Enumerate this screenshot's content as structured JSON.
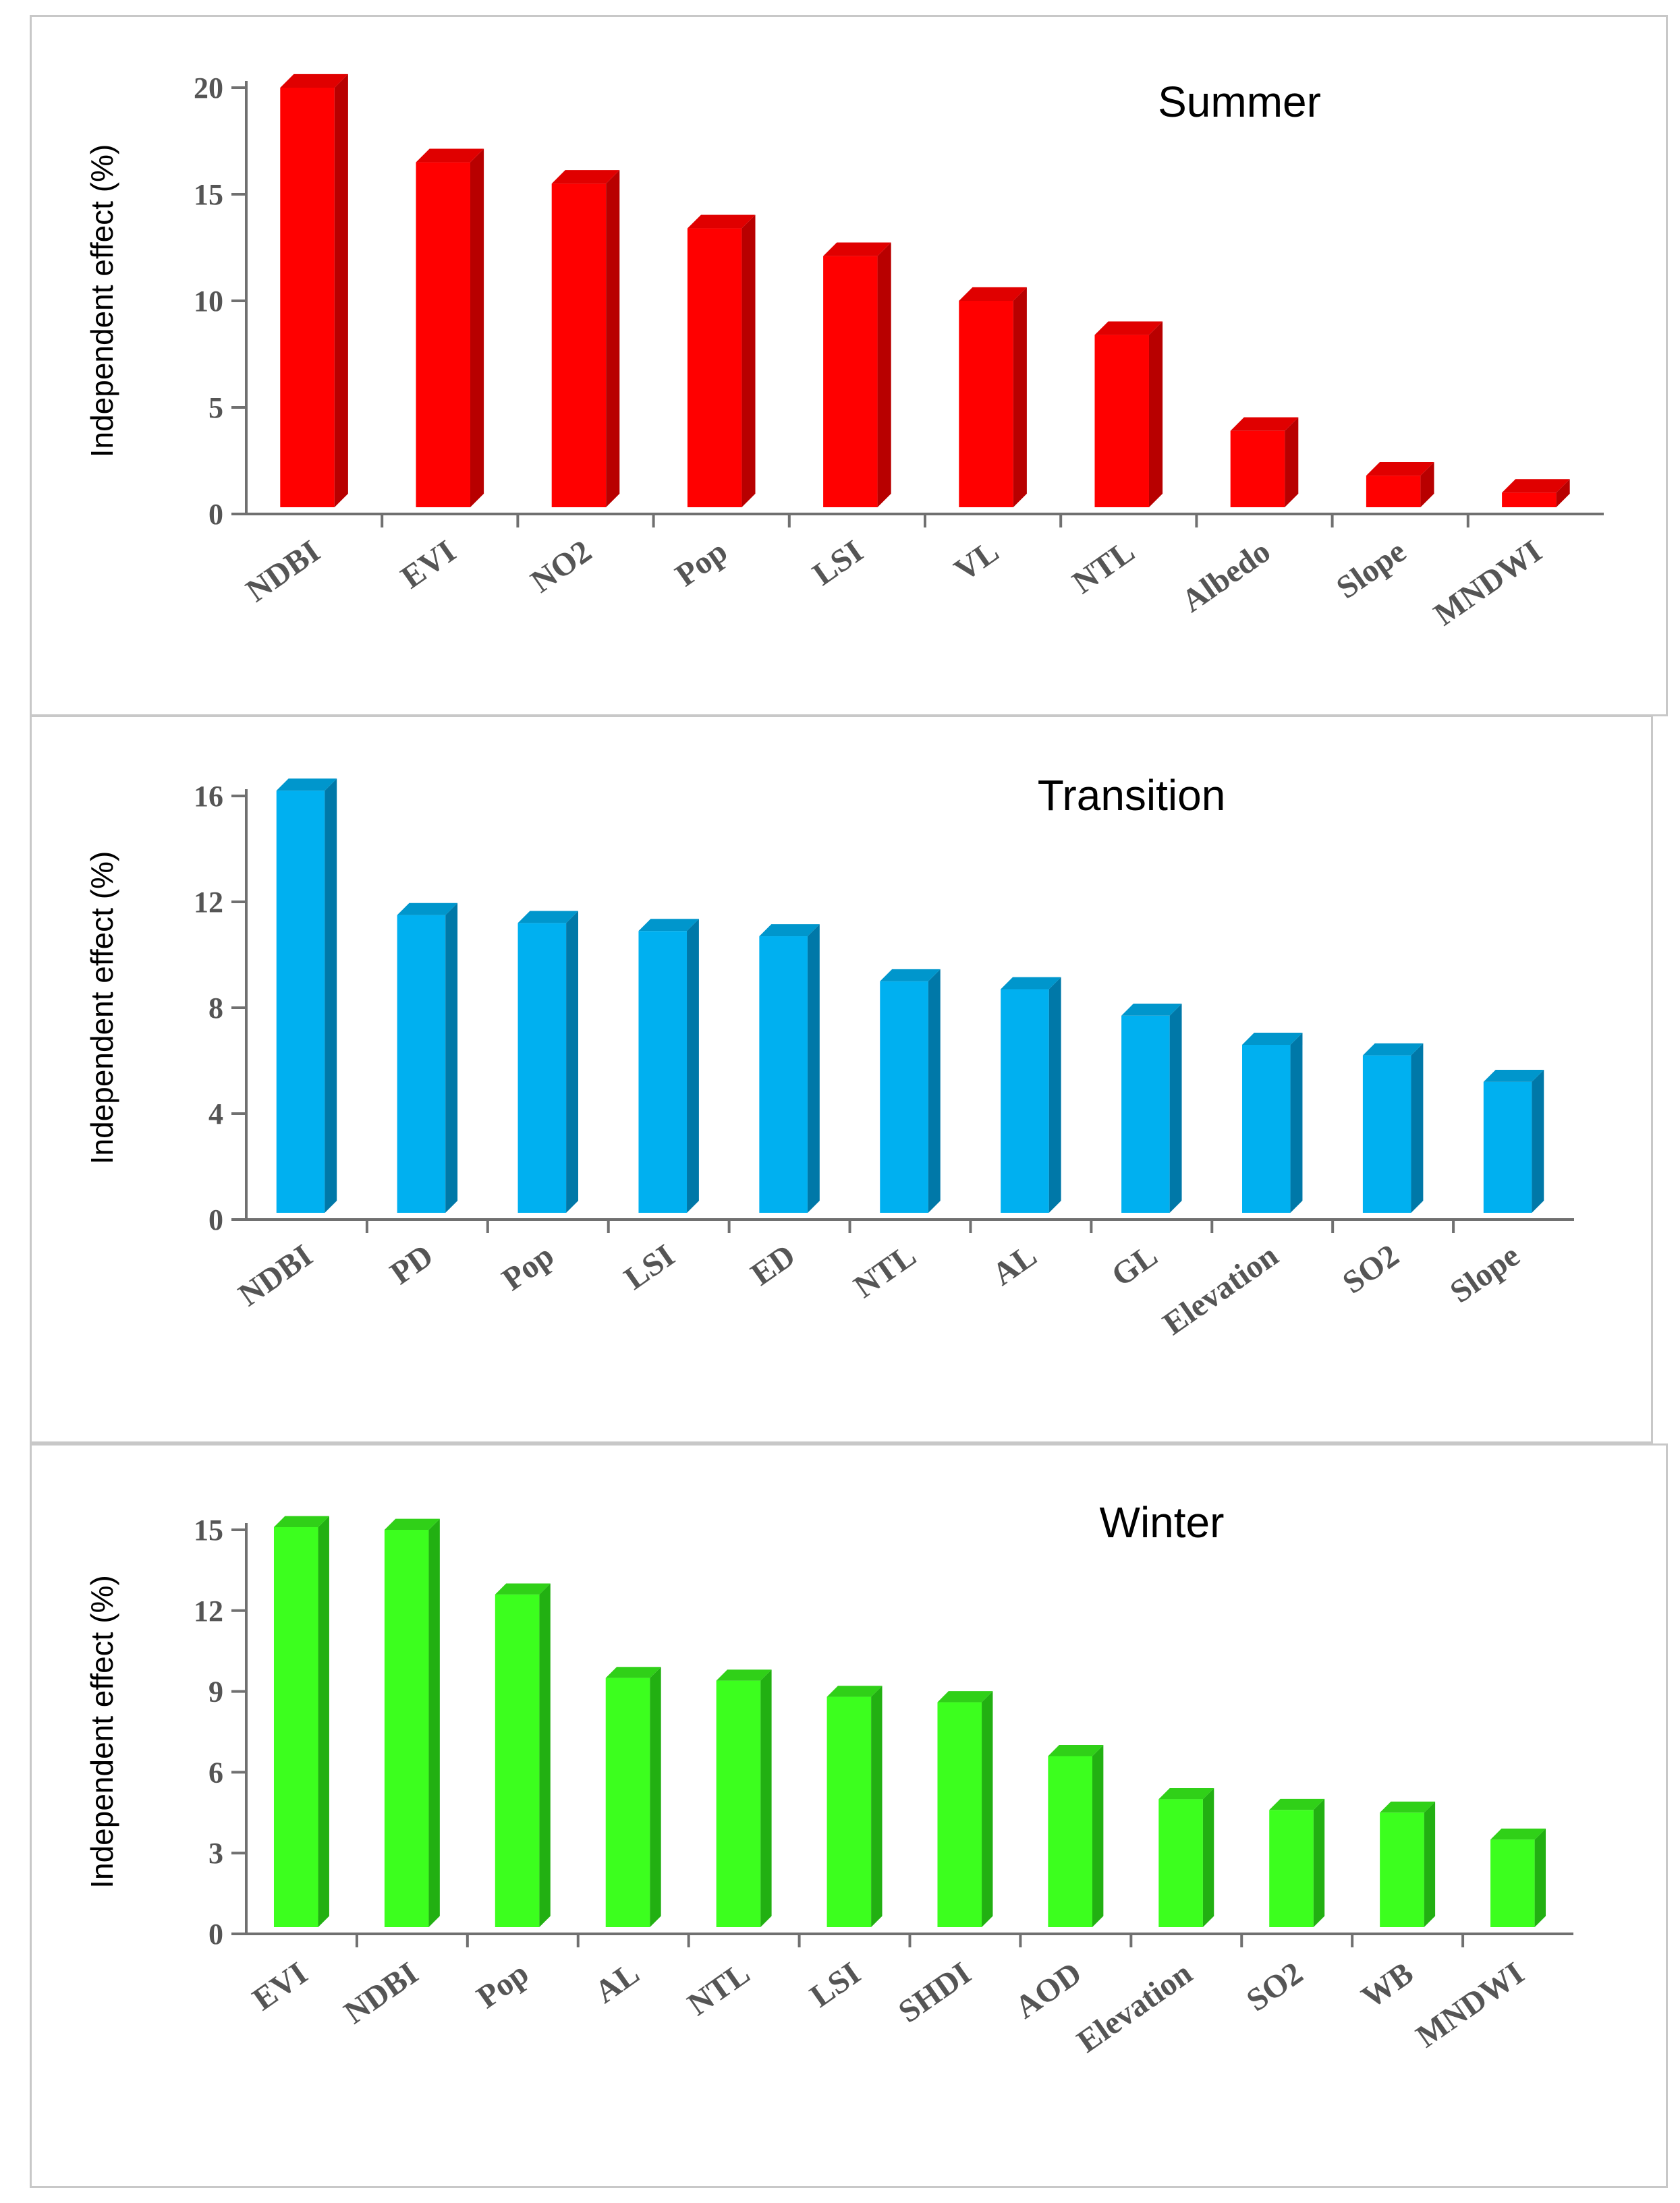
{
  "chart_data": [
    {
      "type": "bar",
      "title": "Summer",
      "xlabel": "",
      "ylabel": "Independent effect (%)",
      "ylim": [
        0,
        20
      ],
      "yticks": [
        "0",
        "5",
        "10",
        "15",
        "20"
      ],
      "categories": [
        "NDBI",
        "EVI",
        "NO2",
        "Pop",
        "LSI",
        "VL",
        "NTL",
        "Albedo",
        "Slope",
        "MNDWI"
      ],
      "values": [
        20.0,
        16.5,
        15.5,
        13.4,
        12.1,
        10.0,
        8.4,
        3.9,
        1.8,
        1.0
      ],
      "colors": {
        "front": "#ff0000",
        "side": "#b80000",
        "top": "#e00000"
      }
    },
    {
      "type": "bar",
      "title": "Transition",
      "xlabel": "",
      "ylabel": "Independent effect (%)",
      "ylim": [
        0,
        16
      ],
      "yticks": [
        "0",
        "4",
        "8",
        "12",
        "16"
      ],
      "categories": [
        "NDBI",
        "PD",
        "Pop",
        "LSI",
        "ED",
        "NTL",
        "AL",
        "GL",
        "Elevation",
        "SO2",
        "Slope"
      ],
      "values": [
        16.2,
        11.5,
        11.2,
        10.9,
        10.7,
        9.0,
        8.7,
        7.7,
        6.6,
        6.2,
        5.2
      ],
      "colors": {
        "front": "#00b0f0",
        "side": "#0078a8",
        "top": "#0096cc"
      }
    },
    {
      "type": "bar",
      "title": "Winter",
      "xlabel": "",
      "ylabel": "Independent effect (%)",
      "ylim": [
        0,
        15
      ],
      "yticks": [
        "0",
        "3",
        "6",
        "9",
        "12",
        "15"
      ],
      "categories": [
        "EVI",
        "NDBI",
        "Pop",
        "AL",
        "NTL",
        "LSI",
        "SHDI",
        "AOD",
        "Elevation",
        "SO2",
        "WB",
        "MNDWI"
      ],
      "values": [
        15.1,
        15.0,
        12.6,
        9.5,
        9.4,
        8.8,
        8.6,
        6.6,
        5.0,
        4.6,
        4.5,
        3.5
      ],
      "colors": {
        "front": "#3cff1e",
        "side": "#22b012",
        "top": "#30d018"
      }
    }
  ]
}
